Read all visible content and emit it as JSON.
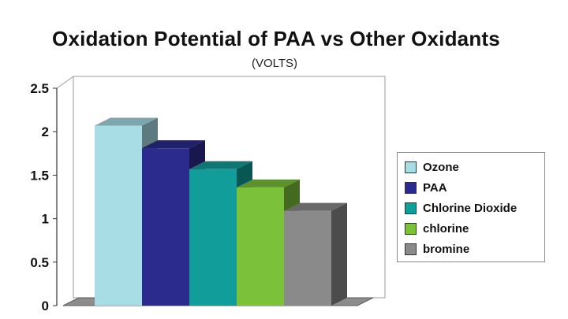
{
  "chart_data": {
    "type": "bar",
    "title": "Oxidation Potential of PAA vs Other Oxidants",
    "subtitle": "(VOLTS)",
    "xlabel": "",
    "ylabel": "",
    "ylim": [
      0,
      2.5
    ],
    "yticks": [
      0,
      0.5,
      1,
      1.5,
      2,
      2.5
    ],
    "ytick_labels": [
      "0",
      "0.5",
      "1",
      "1.5",
      "2",
      "2.5"
    ],
    "grid": false,
    "legend_position": "right",
    "series": [
      {
        "name": "Ozone",
        "value": 2.07,
        "color": "#a8dde6"
      },
      {
        "name": "PAA",
        "value": 1.81,
        "color": "#2b2b8e"
      },
      {
        "name": "Chlorine Dioxide",
        "value": 1.57,
        "color": "#119e9a"
      },
      {
        "name": "chlorine",
        "value": 1.36,
        "color": "#7cc13a"
      },
      {
        "name": "bromine",
        "value": 1.09,
        "color": "#8a8a8a"
      }
    ]
  }
}
